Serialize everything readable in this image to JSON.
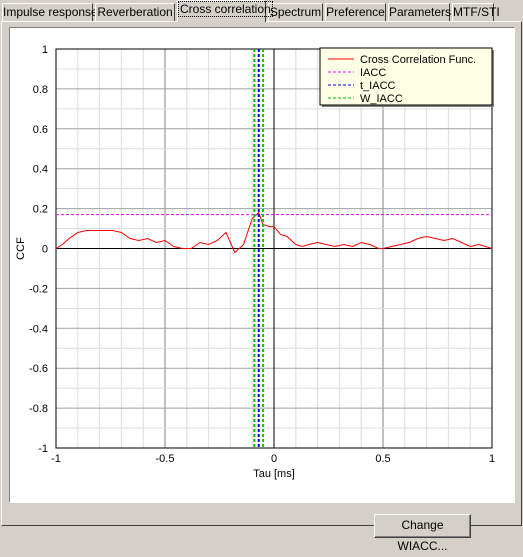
{
  "tabs": [
    {
      "label": "Impulse response",
      "active": false
    },
    {
      "label": "Reverberation",
      "active": false
    },
    {
      "label": "Cross correlation",
      "active": true
    },
    {
      "label": "Spectrum",
      "active": false
    },
    {
      "label": "Preference",
      "active": false
    },
    {
      "label": "Parameters",
      "active": false
    },
    {
      "label": "MTF/STI",
      "active": false
    }
  ],
  "buttons": {
    "change_wiacc": "Change WIACC..."
  },
  "chart_data": {
    "type": "line",
    "xlabel": "Tau [ms]",
    "ylabel": "CCF",
    "xlim": [
      -1,
      1
    ],
    "ylim": [
      -1,
      1
    ],
    "xticks": [
      -1,
      -0.5,
      0,
      0.5,
      1
    ],
    "xtick_labels": [
      "-1",
      "-0.5",
      "0",
      "0.5",
      "1"
    ],
    "yticks": [
      -1,
      -0.8,
      -0.6,
      -0.4,
      -0.2,
      0,
      0.2,
      0.4,
      0.6,
      0.8,
      1
    ],
    "ytick_labels": [
      "-1",
      "-0.8",
      "-0.6",
      "-0.4",
      "-0.2",
      "0",
      "0.2",
      "0.4",
      "0.6",
      "0.8",
      "1"
    ],
    "grid": true,
    "legend_position": "top-right",
    "series": [
      {
        "name": "Cross Correlation Func.",
        "color": "#ff0000",
        "style": "solid",
        "x": [
          -1,
          -0.97,
          -0.94,
          -0.9,
          -0.86,
          -0.82,
          -0.78,
          -0.74,
          -0.7,
          -0.66,
          -0.62,
          -0.58,
          -0.54,
          -0.5,
          -0.46,
          -0.42,
          -0.38,
          -0.34,
          -0.3,
          -0.26,
          -0.22,
          -0.18,
          -0.14,
          -0.1,
          -0.07,
          -0.05,
          -0.02,
          0,
          0.03,
          0.06,
          0.1,
          0.13,
          0.16,
          0.2,
          0.24,
          0.28,
          0.32,
          0.36,
          0.4,
          0.44,
          0.48,
          0.5,
          0.54,
          0.58,
          0.62,
          0.66,
          0.7,
          0.74,
          0.78,
          0.82,
          0.86,
          0.9,
          0.94,
          0.97,
          1
        ],
        "y": [
          0,
          0.02,
          0.05,
          0.08,
          0.09,
          0.09,
          0.09,
          0.09,
          0.08,
          0.05,
          0.04,
          0.05,
          0.03,
          0.04,
          0.01,
          0.0,
          0.0,
          0.03,
          0.02,
          0.04,
          0.08,
          -0.02,
          0.02,
          0.15,
          0.18,
          0.12,
          0.11,
          0.11,
          0.07,
          0.06,
          0.02,
          0.01,
          0.02,
          0.03,
          0.02,
          0.01,
          0.02,
          0.01,
          0.03,
          0.02,
          0.0,
          0.0,
          0.01,
          0.02,
          0.03,
          0.05,
          0.06,
          0.05,
          0.04,
          0.05,
          0.03,
          0.01,
          0.02,
          0.01,
          0.0
        ]
      },
      {
        "name": "IACC",
        "color": "#ff00ff",
        "style": "dashed",
        "orientation": "horizontal",
        "value": 0.17
      },
      {
        "name": "t_IACC",
        "color": "#0000ff",
        "style": "dashed",
        "orientation": "vertical",
        "value": -0.07
      },
      {
        "name": "W_IACC",
        "color": "#00c000",
        "style": "dashed",
        "orientation": "vertical",
        "values": [
          -0.09,
          -0.05
        ]
      }
    ]
  }
}
